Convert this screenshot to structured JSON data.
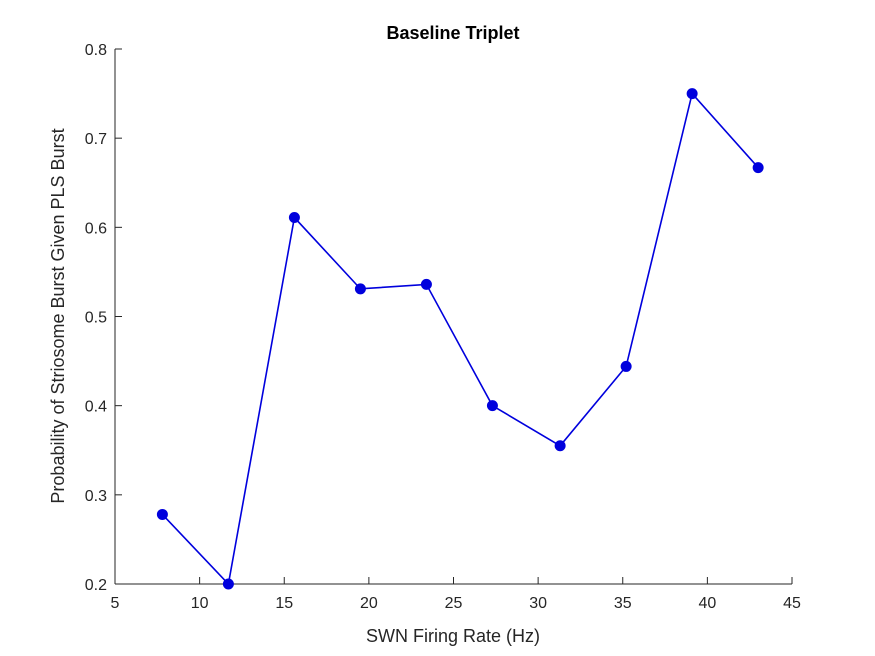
{
  "chart_data": {
    "type": "line",
    "title": "Baseline Triplet",
    "xlabel": "SWN Firing Rate (Hz)",
    "ylabel": "Probability of Striosome Burst Given PLS Burst",
    "xlim": [
      5,
      45
    ],
    "ylim": [
      0.2,
      0.8
    ],
    "xticks": [
      5,
      10,
      15,
      20,
      25,
      30,
      35,
      40,
      45
    ],
    "yticks": [
      0.2,
      0.3,
      0.4,
      0.5,
      0.6,
      0.7,
      0.8
    ],
    "xtick_labels": [
      "5",
      "10",
      "15",
      "20",
      "25",
      "30",
      "35",
      "40",
      "45"
    ],
    "ytick_labels": [
      "0.2",
      "0.3",
      "0.4",
      "0.5",
      "0.6",
      "0.7",
      "0.8"
    ],
    "grid": false,
    "legend": null,
    "series": [
      {
        "color": "#0000dd",
        "marker": "filled-circle",
        "x": [
          7.8,
          11.7,
          15.6,
          19.5,
          23.4,
          27.3,
          31.3,
          35.2,
          39.1,
          43.0
        ],
        "y": [
          0.278,
          0.2,
          0.611,
          0.531,
          0.536,
          0.4,
          0.355,
          0.444,
          0.75,
          0.667
        ]
      }
    ]
  }
}
